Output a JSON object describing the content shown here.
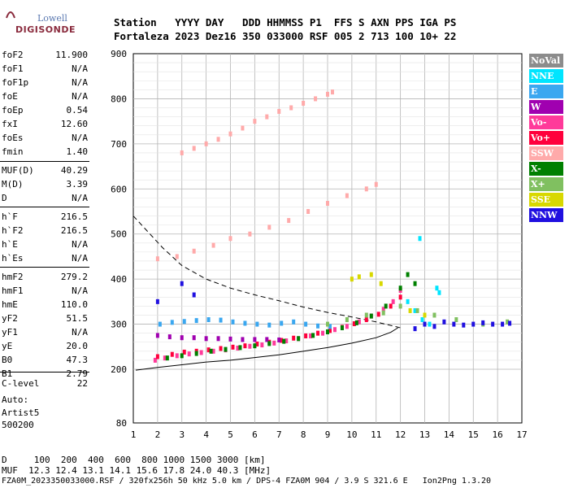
{
  "logo": {
    "line1": "Lowell",
    "line2": "DIGISONDE"
  },
  "header": {
    "labels": "Station   YYYY DAY   DDD HHMMSS P1  FFS S AXN PPS IGA PS",
    "values": "Fortaleza 2023 Dez16 350 033000 RSF 005 2 713 100 10+ 22"
  },
  "params": [
    {
      "name": "foF2",
      "value": "11.900"
    },
    {
      "name": "foF1",
      "value": "N/A"
    },
    {
      "name": "foF1p",
      "value": "N/A"
    },
    {
      "name": "foE",
      "value": "N/A"
    },
    {
      "name": "foEp",
      "value": "0.54"
    },
    {
      "name": "fxI",
      "value": "12.60"
    },
    {
      "name": "foEs",
      "value": "N/A"
    },
    {
      "name": "fmin",
      "value": "1.40"
    },
    {
      "name": "MUF(D)",
      "value": "40.29"
    },
    {
      "name": "M(D)",
      "value": "3.39"
    },
    {
      "name": "D",
      "value": "N/A"
    },
    {
      "name": "h`F",
      "value": "216.5"
    },
    {
      "name": "h`F2",
      "value": "216.5"
    },
    {
      "name": "h`E",
      "value": "N/A"
    },
    {
      "name": "h`Es",
      "value": "N/A"
    },
    {
      "name": "hmF2",
      "value": "279.2"
    },
    {
      "name": "hmF1",
      "value": "N/A"
    },
    {
      "name": "hmE",
      "value": "110.0"
    },
    {
      "name": "yF2",
      "value": "51.5"
    },
    {
      "name": "yF1",
      "value": "N/A"
    },
    {
      "name": "yE",
      "value": "20.0"
    },
    {
      "name": "B0",
      "value": "47.3"
    },
    {
      "name": "B1",
      "value": "2.79"
    },
    {
      "name": "C-level",
      "value": "22"
    }
  ],
  "autoscaling": {
    "line1": "Auto:",
    "line2": "Artist5",
    "line3": "500200"
  },
  "legend": [
    {
      "label": "NoVal",
      "color": "#8c8c8c"
    },
    {
      "label": "NNE",
      "color": "#00e5ff"
    },
    {
      "label": "E",
      "color": "#3aa7f0"
    },
    {
      "label": "W",
      "color": "#a000b0"
    },
    {
      "label": "Vo-",
      "color": "#ff3a9a"
    },
    {
      "label": "Vo+",
      "color": "#ff003c"
    },
    {
      "label": "SSW",
      "color": "#ffaaaa"
    },
    {
      "label": "X-",
      "color": "#008000"
    },
    {
      "label": "X+",
      "color": "#80c060"
    },
    {
      "label": "SSE",
      "color": "#d8d800"
    },
    {
      "label": "NNW",
      "color": "#2010e0"
    }
  ],
  "footer": {
    "d_row": "D     100  200  400  600  800 1000 1500 3000 [km]",
    "muf_row": "MUF  12.3 12.4 13.1 14.1 15.6 17.8 24.0 40.3 [MHz]",
    "file_row": "FZA0M_2023350033000.RSF / 320fx256h 50 kHz 5.0 km / DPS-4 FZA0M 904 / 3.9 S 321.6 E   Ion2Png 1.3.20"
  },
  "chart_data": {
    "type": "scatter",
    "x_ticks": [
      "1",
      "2",
      "3",
      "4",
      "5",
      "6",
      "7",
      "8",
      "9",
      "10",
      "11",
      "12",
      "13",
      "14",
      "15",
      "16",
      "17"
    ],
    "y_ticks": [
      "80",
      "200",
      "300",
      "400",
      "500",
      "600",
      "700",
      "800",
      "900"
    ],
    "xlim": [
      1,
      17
    ],
    "ylim": [
      80,
      900
    ],
    "grid": true,
    "legend_position": "right",
    "series": [
      {
        "name": "Vo-",
        "color": "#ff3a9a",
        "x": [
          1.9,
          2.3,
          2.8,
          3.3,
          3.8,
          4.3,
          4.8,
          5.3,
          5.8,
          6.3,
          6.8,
          7.3,
          7.8,
          8.3,
          8.8,
          9.3,
          9.8,
          10.3,
          10.8,
          11.3,
          11.7,
          12.0
        ],
        "y": [
          220,
          225,
          230,
          234,
          237,
          240,
          243,
          247,
          251,
          254,
          258,
          263,
          268,
          274,
          280,
          288,
          295,
          305,
          318,
          333,
          350,
          375
        ]
      },
      {
        "name": "Vo+",
        "color": "#ff003c",
        "x": [
          2.0,
          2.6,
          3.1,
          3.6,
          4.1,
          4.6,
          5.1,
          5.6,
          6.1,
          6.6,
          7.1,
          7.6,
          8.1,
          8.6,
          9.1,
          9.6,
          10.1,
          10.6,
          11.1,
          11.6,
          12.0
        ],
        "y": [
          228,
          233,
          238,
          240,
          243,
          246,
          249,
          252,
          256,
          260,
          264,
          269,
          274,
          280,
          286,
          293,
          301,
          310,
          322,
          340,
          360
        ]
      },
      {
        "name": "W",
        "color": "#a000b0",
        "x": [
          2.0,
          2.5,
          3.0,
          3.5,
          4.0,
          4.5,
          5.0,
          5.5,
          6.0,
          6.5,
          7.0
        ],
        "y": [
          275,
          272,
          270,
          270,
          268,
          268,
          267,
          266,
          266,
          266,
          265
        ]
      },
      {
        "name": "E",
        "color": "#3aa7f0",
        "x": [
          2.1,
          2.6,
          3.1,
          3.6,
          4.1,
          4.6,
          5.1,
          5.6,
          6.1,
          6.6,
          7.1,
          7.6,
          8.1,
          8.6,
          9.1
        ],
        "y": [
          300,
          304,
          306,
          308,
          310,
          309,
          305,
          302,
          300,
          298,
          302,
          305,
          300,
          296,
          295
        ]
      },
      {
        "name": "NNE",
        "color": "#00e5ff",
        "x": [
          12.3,
          12.6,
          12.9,
          13.2,
          13.5,
          12.8,
          13.6
        ],
        "y": [
          350,
          330,
          310,
          300,
          380,
          490,
          370
        ]
      },
      {
        "name": "X-",
        "color": "#008000",
        "x": [
          2.4,
          3.0,
          3.6,
          4.2,
          4.8,
          5.4,
          6.0,
          6.6,
          7.2,
          7.8,
          8.4,
          9.0,
          9.6,
          10.2,
          10.8,
          11.4,
          12.0,
          12.3,
          12.6
        ],
        "y": [
          225,
          230,
          235,
          240,
          244,
          248,
          252,
          257,
          262,
          268,
          275,
          283,
          292,
          303,
          318,
          340,
          380,
          410,
          390
        ]
      },
      {
        "name": "X+",
        "color": "#80c060",
        "x": [
          9.0,
          9.8,
          10.6,
          11.3,
          12.0,
          12.7,
          13.4,
          14.3,
          15.4,
          16.4
        ],
        "y": [
          300,
          310,
          320,
          325,
          340,
          330,
          320,
          310,
          300,
          305
        ]
      },
      {
        "name": "SSE",
        "color": "#d8d800",
        "x": [
          10.0,
          10.3,
          10.8,
          11.2,
          12.4,
          13.0
        ],
        "y": [
          400,
          405,
          410,
          390,
          330,
          320
        ]
      },
      {
        "name": "NNW",
        "color": "#2010e0",
        "x": [
          12.6,
          13.0,
          13.4,
          13.8,
          14.2,
          14.6,
          15.0,
          15.4,
          15.8,
          16.2,
          16.5,
          3.0,
          3.5,
          2.0
        ],
        "y": [
          290,
          300,
          295,
          305,
          300,
          298,
          300,
          303,
          300,
          300,
          302,
          390,
          365,
          350
        ]
      },
      {
        "name": "SSW",
        "color": "#ffaaaa",
        "x": [
          2.0,
          2.8,
          3.5,
          4.3,
          5.0,
          5.8,
          6.6,
          7.4,
          8.2,
          9.0,
          9.8,
          10.6,
          11.0,
          3.0,
          3.5,
          4.0,
          4.5,
          5.0,
          5.5,
          6.0,
          6.5,
          7.0,
          7.5,
          8.0,
          8.5,
          9.0,
          9.2
        ],
        "y": [
          445,
          450,
          462,
          475,
          490,
          500,
          515,
          530,
          550,
          568,
          585,
          600,
          610,
          680,
          690,
          700,
          710,
          722,
          735,
          750,
          760,
          772,
          780,
          790,
          800,
          810,
          815
        ]
      }
    ]
  }
}
